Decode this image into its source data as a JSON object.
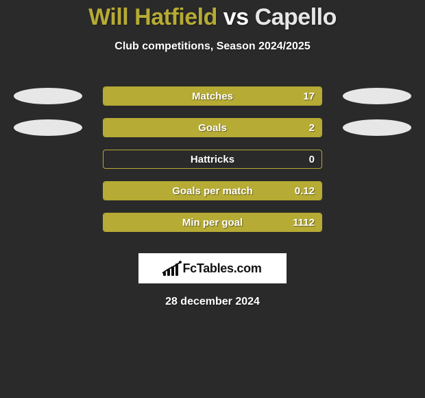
{
  "header": {
    "player1": "Will Hatfield",
    "vs": " vs ",
    "player2": "Capello",
    "color1": "#b6ab34",
    "color2": "#e6e6e6"
  },
  "subtitle": "Club competitions, Season 2024/2025",
  "chart": {
    "bar_border_color": "#b6ab34",
    "bar_fill_color": "#b6ab34",
    "track_bg": "transparent",
    "ellipse_left_color": "#e7e7e7",
    "ellipse_right_color": "#e7e7e7",
    "rows": [
      {
        "label": "Matches",
        "value": "17",
        "fill_pct": 100,
        "show_ellipses": true
      },
      {
        "label": "Goals",
        "value": "2",
        "fill_pct": 100,
        "show_ellipses": true
      },
      {
        "label": "Hattricks",
        "value": "0",
        "fill_pct": 0,
        "show_ellipses": false
      },
      {
        "label": "Goals per match",
        "value": "0.12",
        "fill_pct": 100,
        "show_ellipses": false
      },
      {
        "label": "Min per goal",
        "value": "1112",
        "fill_pct": 100,
        "show_ellipses": false
      }
    ]
  },
  "brand": "FcTables.com",
  "date": "28 december 2024",
  "style": {
    "background": "#2a2a2a",
    "brand_icon_bar_heights": [
      6,
      10,
      14,
      18
    ]
  }
}
